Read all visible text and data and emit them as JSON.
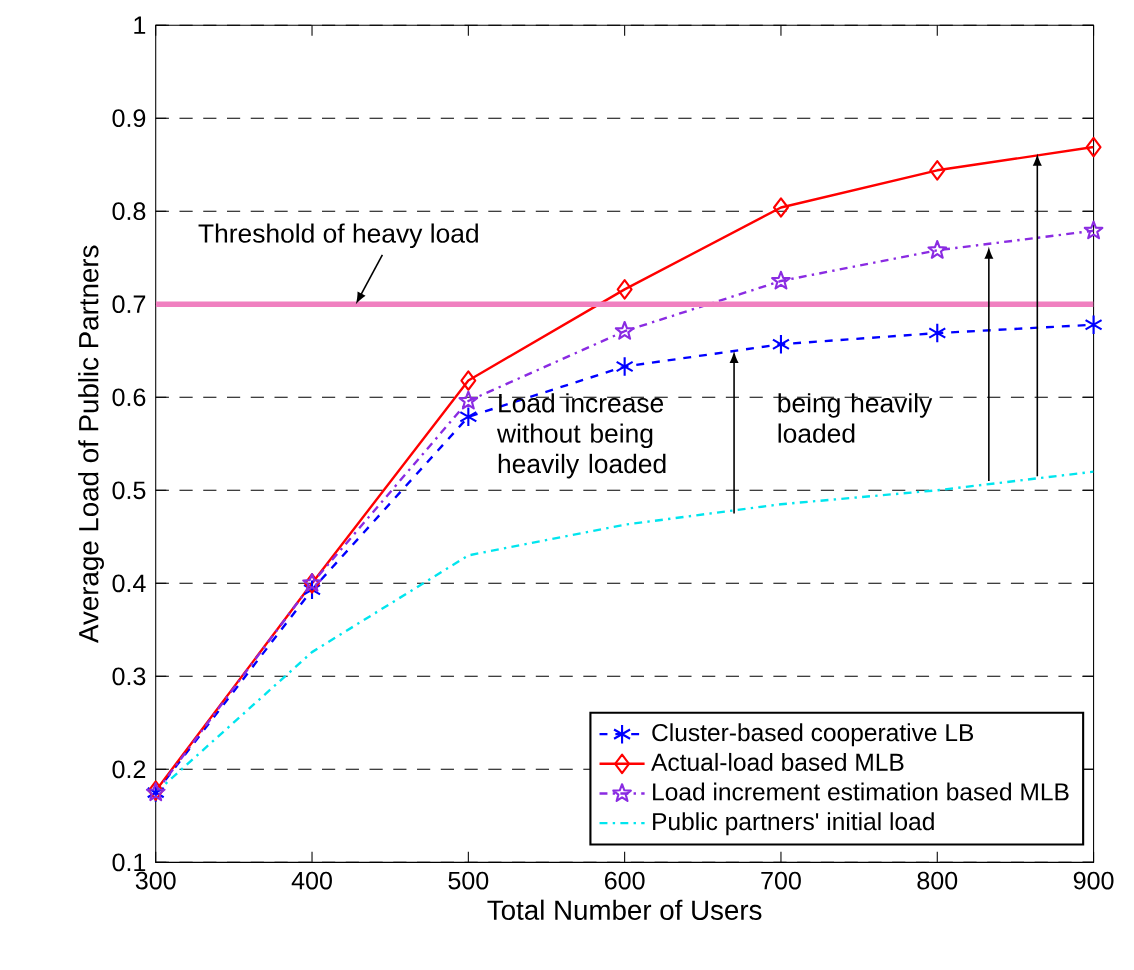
{
  "chart_data": {
    "type": "line",
    "xlabel": "Total Number of Users",
    "ylabel": "Average Load of Public Partners",
    "x": [
      300,
      400,
      500,
      600,
      700,
      800,
      900
    ],
    "series": [
      {
        "name": "Cluster-based cooperative LB",
        "color": "#0000ff",
        "marker": "cross",
        "line_style": "dashed",
        "values": [
          0.175,
          0.393,
          0.579,
          0.633,
          0.657,
          0.669,
          0.678
        ]
      },
      {
        "name": "Actual-load based MLB",
        "color": "#ff0000",
        "marker": "diamond",
        "line_style": "solid",
        "values": [
          0.177,
          0.4,
          0.618,
          0.716,
          0.804,
          0.844,
          0.869
        ]
      },
      {
        "name": "Load increment estimation based MLB",
        "color": "#8a2be2",
        "marker": "star",
        "line_style": "dashdot",
        "values": [
          0.175,
          0.4,
          0.596,
          0.671,
          0.725,
          0.758,
          0.779
        ]
      },
      {
        "name": "Public partners' initial load",
        "color": "#00e5ee",
        "marker": "none",
        "line_style": "dashdot",
        "values": [
          0.175,
          0.326,
          0.43,
          0.463,
          0.485,
          0.5,
          0.52
        ]
      }
    ],
    "xlim": [
      300,
      900
    ],
    "ylim": [
      0.1,
      1
    ],
    "xticks": [
      300,
      400,
      500,
      600,
      700,
      800,
      900
    ],
    "yticks": [
      0.1,
      0.2,
      0.3,
      0.4,
      0.5,
      0.6,
      0.7,
      0.8,
      0.9,
      1
    ],
    "grid": "y",
    "legend": "bottom right",
    "ref_lines": [
      {
        "axis": "y",
        "value": 0.7,
        "label": "Threshold of heavy load",
        "color": "#f080c0"
      }
    ],
    "annotations": [
      "Load increase without being heavily loaded",
      "being heavily loaded"
    ]
  }
}
